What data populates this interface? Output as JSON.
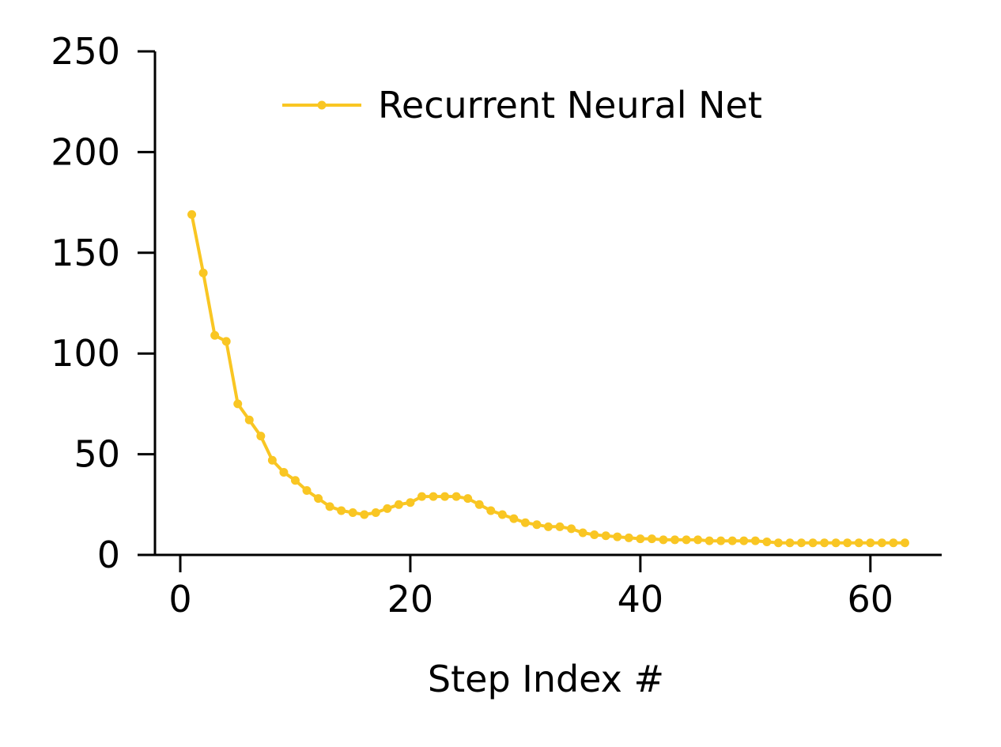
{
  "chart_data": {
    "type": "line",
    "title": "",
    "xlabel": "Step Index #",
    "ylabel": "",
    "xlim": [
      -2.2,
      66.2
    ],
    "ylim": [
      0,
      250
    ],
    "xticks": [
      0,
      20,
      40,
      60
    ],
    "yticks": [
      0,
      50,
      100,
      150,
      200,
      250
    ],
    "xtick_labels": [
      "0",
      "20",
      "40",
      "60"
    ],
    "ytick_labels": [
      "0",
      "50",
      "100",
      "150",
      "200",
      "250"
    ],
    "grid": false,
    "legend_position": "top-right",
    "series": [
      {
        "name": "Recurrent Neural Net",
        "color": "#F9C623",
        "marker": "circle",
        "x": [
          1,
          2,
          3,
          4,
          5,
          6,
          7,
          8,
          9,
          10,
          11,
          12,
          13,
          14,
          15,
          16,
          17,
          18,
          19,
          20,
          21,
          22,
          23,
          24,
          25,
          26,
          27,
          28,
          29,
          30,
          31,
          32,
          33,
          34,
          35,
          36,
          37,
          38,
          39,
          40,
          41,
          42,
          43,
          44,
          45,
          46,
          47,
          48,
          49,
          50,
          51,
          52,
          53,
          54,
          55,
          56,
          57,
          58,
          59,
          60,
          61,
          62,
          63
        ],
        "y": [
          169,
          140,
          109,
          106,
          75,
          67,
          59,
          47,
          41,
          37,
          32,
          28,
          24,
          22,
          21,
          20,
          21,
          23,
          25,
          26,
          29,
          29,
          29,
          29,
          28,
          25,
          22,
          20,
          18,
          16,
          15,
          14,
          14,
          13,
          11,
          10,
          9.5,
          9,
          8.5,
          8,
          8,
          7.5,
          7.5,
          7.5,
          7.5,
          7,
          7,
          7,
          7,
          7,
          6.5,
          6,
          6,
          6,
          6,
          6,
          6,
          6,
          6,
          6,
          6,
          6,
          6
        ]
      }
    ]
  }
}
